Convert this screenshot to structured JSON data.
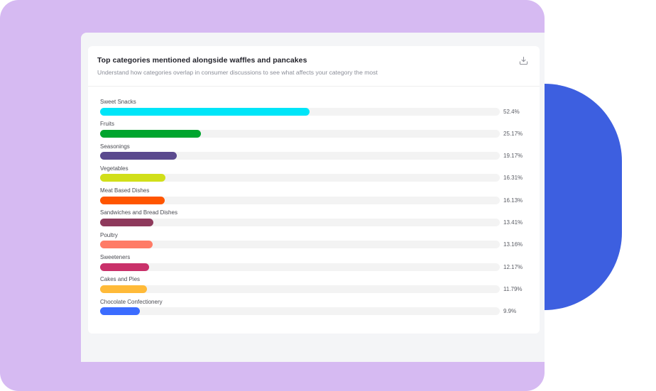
{
  "card": {
    "title": "Top categories mentioned alongside waffles and pancakes",
    "subtitle": "Understand how categories overlap in consumer discussions to see what affects your category the most",
    "download_icon": "download-icon"
  },
  "colors": {
    "frame_background": "#d6baf2",
    "accent_shape": "#3d5fe0",
    "panel_background": "#f4f5f7",
    "track": "#f3f3f3"
  },
  "chart_data": {
    "type": "bar",
    "orientation": "horizontal",
    "title": "Top categories mentioned alongside waffles and pancakes",
    "subtitle": "Understand how categories overlap in consumer discussions to see what affects your category the most",
    "xlabel": "",
    "ylabel": "",
    "xlim": [
      0,
      100
    ],
    "unit": "%",
    "grid": false,
    "legend": "none",
    "categories": [
      "Sweet Snacks",
      "Fruits",
      "Seasonings",
      "Vegetables",
      "Meat Based Dishes",
      "Sandwiches and Bread Dishes",
      "Poultry",
      "Sweeteners",
      "Cakes and Pies",
      "Chocolate Confectionery"
    ],
    "values": [
      52.4,
      25.17,
      19.17,
      16.31,
      16.13,
      13.41,
      13.16,
      12.17,
      11.79,
      9.9
    ],
    "value_labels": [
      "52.4%",
      "25.17%",
      "19.17%",
      "16.31%",
      "16.13%",
      "13.41%",
      "13.16%",
      "12.17%",
      "11.79%",
      "9.9%"
    ],
    "bar_colors": [
      "#00e5f8",
      "#00a52e",
      "#5b4a8e",
      "#d1df1a",
      "#ff5500",
      "#8e3a5c",
      "#ff7b66",
      "#c9316a",
      "#ffba38",
      "#3b6cff"
    ]
  }
}
